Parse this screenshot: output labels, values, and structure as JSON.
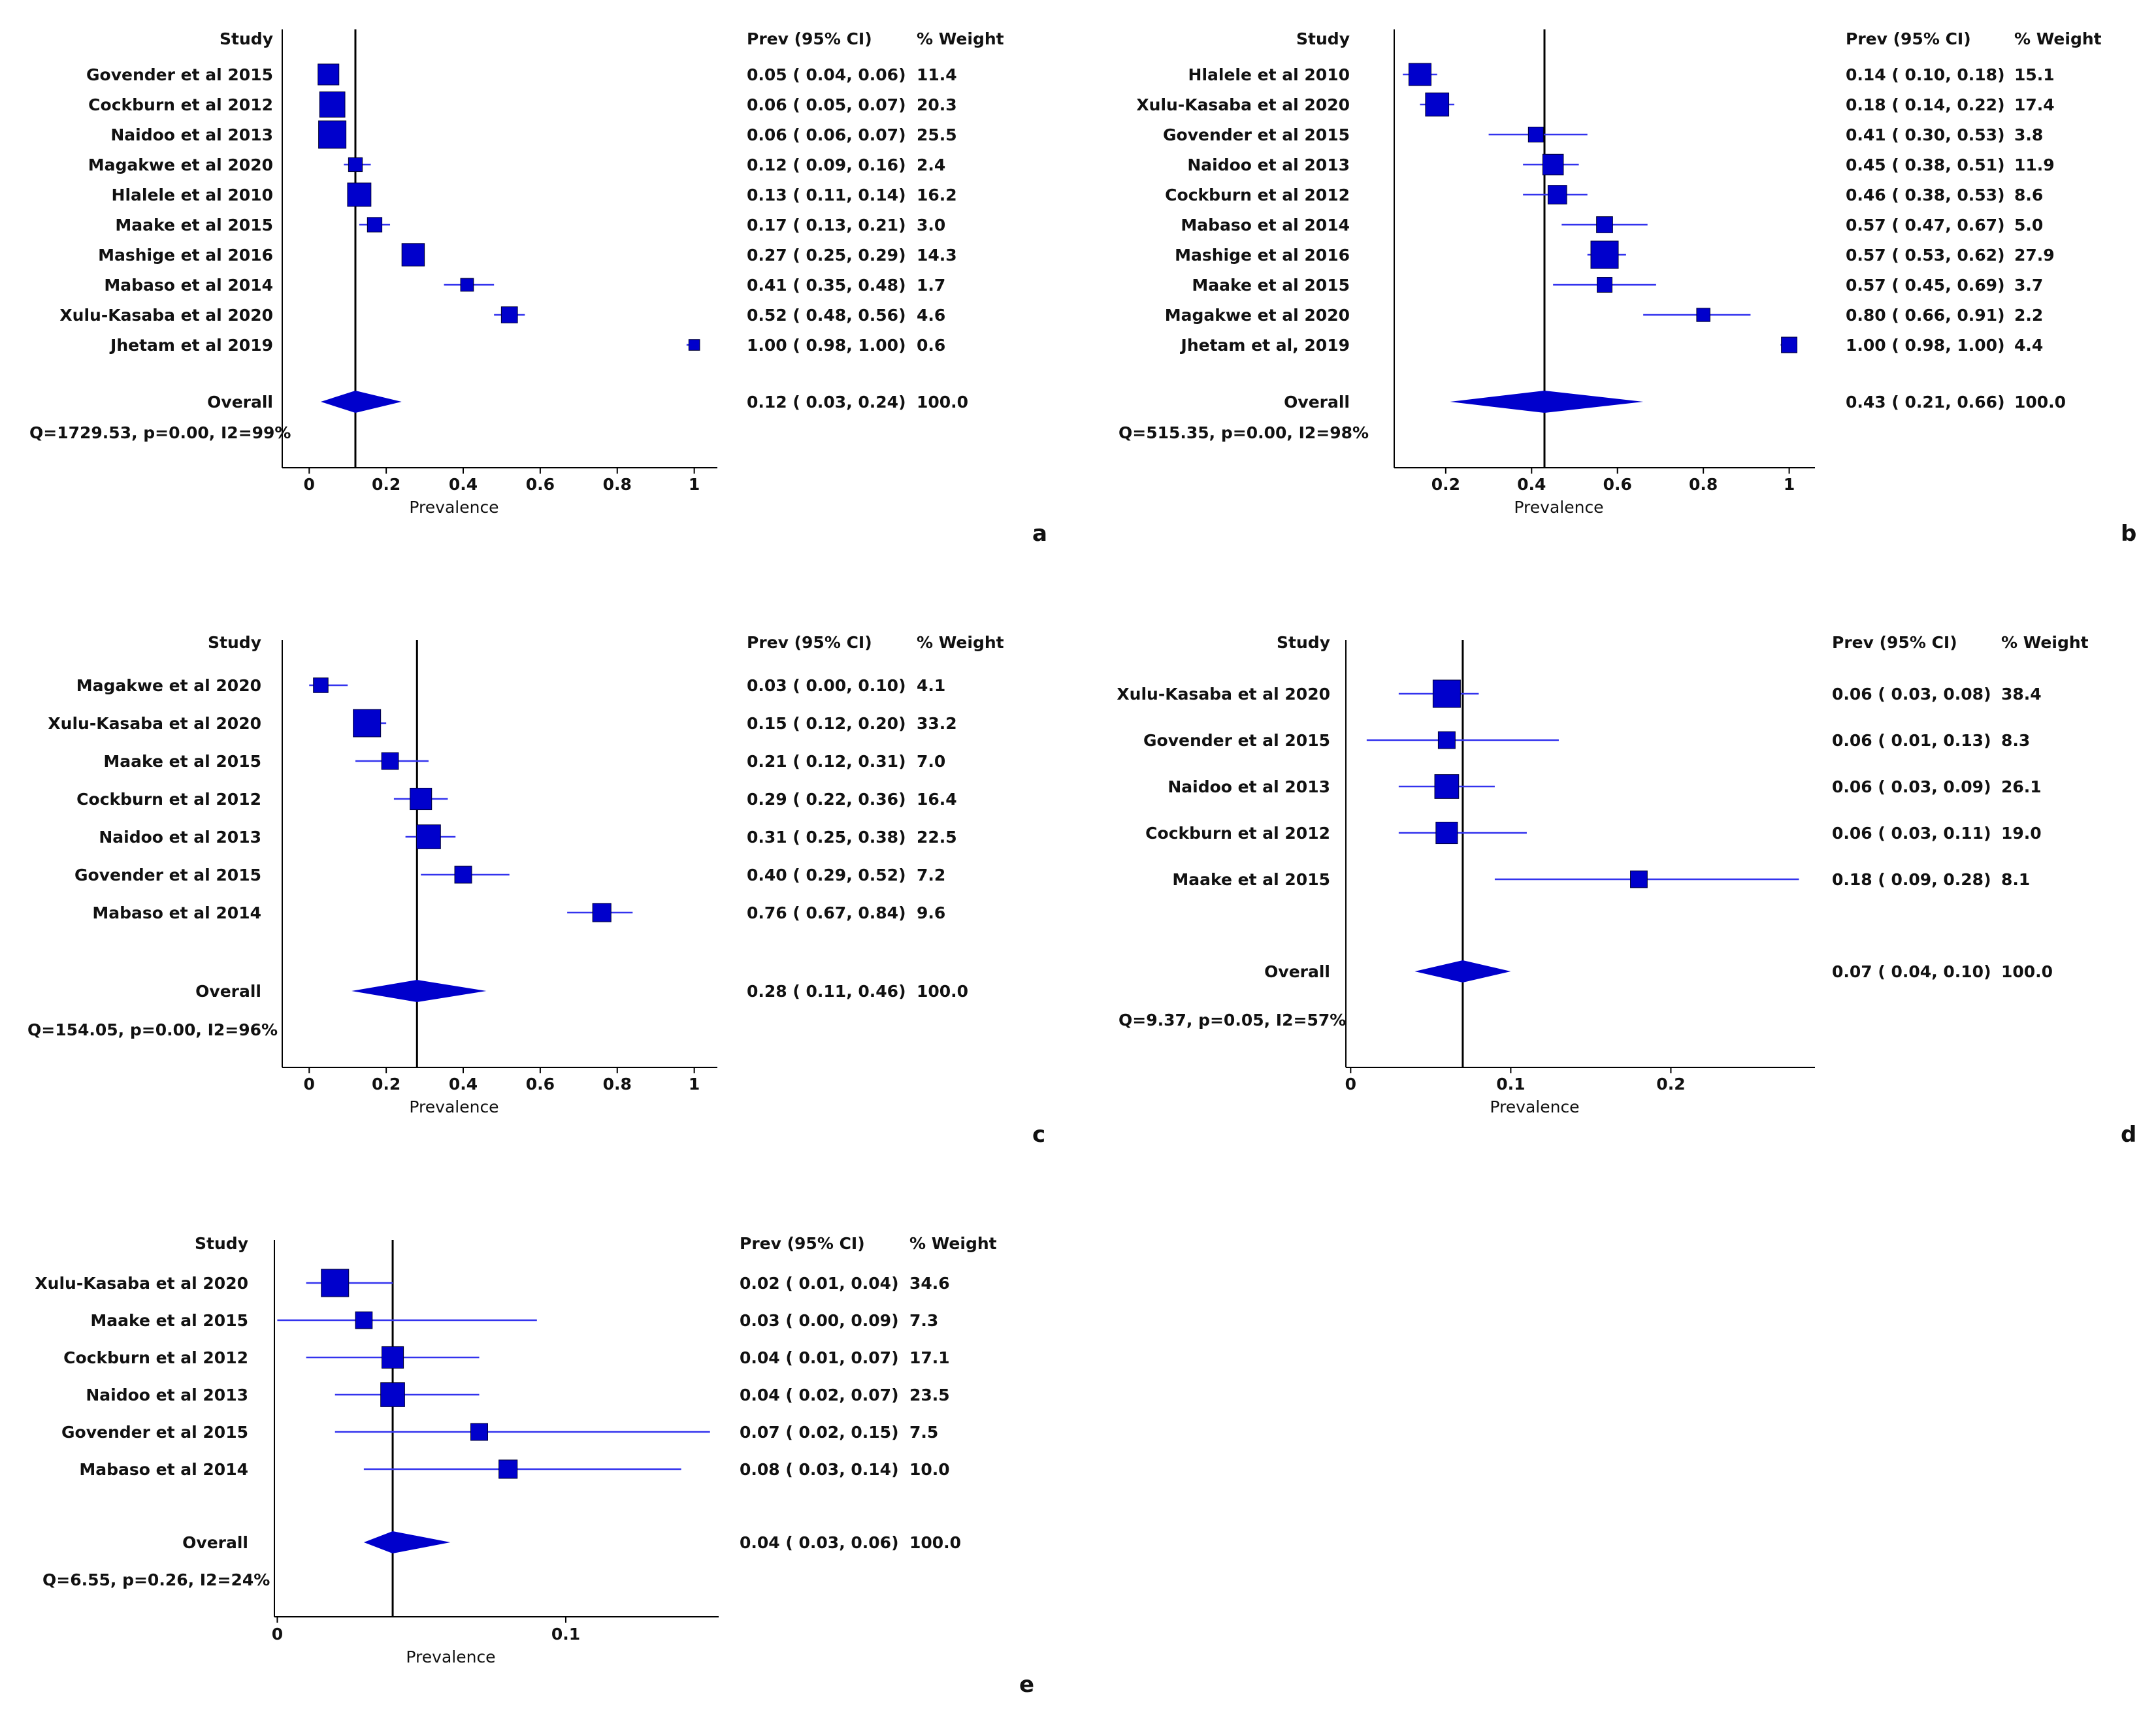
{
  "figure": {
    "headers": {
      "study": "Study",
      "prev": "Prev (95% CI)",
      "weight": "% Weight"
    },
    "xlabel": "Prevalence",
    "overall_label": "Overall",
    "colors": {
      "marker": "#0000cc",
      "ci": "#3333ee",
      "axis": "#000000"
    }
  },
  "chart_data": [
    {
      "type": "forest",
      "panel": "a",
      "studies": [
        {
          "name": "Govender et al 2015",
          "prev": 0.05,
          "lo": 0.04,
          "hi": 0.06,
          "weight": "11.4",
          "ci_text": "0.05 ( 0.04, 0.06)"
        },
        {
          "name": "Cockburn et al 2012",
          "prev": 0.06,
          "lo": 0.05,
          "hi": 0.07,
          "weight": "20.3",
          "ci_text": "0.06 ( 0.05, 0.07)"
        },
        {
          "name": "Naidoo et al 2013",
          "prev": 0.06,
          "lo": 0.06,
          "hi": 0.07,
          "weight": "25.5",
          "ci_text": "0.06 ( 0.06, 0.07)"
        },
        {
          "name": "Magakwe et al 2020",
          "prev": 0.12,
          "lo": 0.09,
          "hi": 0.16,
          "weight": "2.4",
          "ci_text": "0.12 ( 0.09, 0.16)"
        },
        {
          "name": "Hlalele et al 2010",
          "prev": 0.13,
          "lo": 0.11,
          "hi": 0.14,
          "weight": "16.2",
          "ci_text": "0.13 ( 0.11, 0.14)"
        },
        {
          "name": "Maake et al 2015",
          "prev": 0.17,
          "lo": 0.13,
          "hi": 0.21,
          "weight": "3.0",
          "ci_text": "0.17 ( 0.13, 0.21)"
        },
        {
          "name": "Mashige et al 2016",
          "prev": 0.27,
          "lo": 0.25,
          "hi": 0.29,
          "weight": "14.3",
          "ci_text": "0.27 ( 0.25, 0.29)"
        },
        {
          "name": "Mabaso et al 2014",
          "prev": 0.41,
          "lo": 0.35,
          "hi": 0.48,
          "weight": "1.7",
          "ci_text": "0.41 ( 0.35, 0.48)"
        },
        {
          "name": "Xulu-Kasaba et al 2020",
          "prev": 0.52,
          "lo": 0.48,
          "hi": 0.56,
          "weight": "4.6",
          "ci_text": "0.52 ( 0.48, 0.56)"
        },
        {
          "name": "Jhetam et al 2019",
          "prev": 1.0,
          "lo": 0.98,
          "hi": 1.0,
          "weight": "0.6",
          "ci_text": "1.00 ( 0.98, 1.00)"
        }
      ],
      "overall": {
        "prev": 0.12,
        "lo": 0.03,
        "hi": 0.24,
        "weight": "100.0",
        "ci_text": "0.12 ( 0.03, 0.24)"
      },
      "stats": "Q=1729.53, p=0.00, I2=99%",
      "xlim": [
        -0.07,
        1.06
      ],
      "xticks": [
        0,
        0.2,
        0.4,
        0.6,
        0.8,
        1
      ],
      "xtick_labels": [
        "0",
        "0.2",
        "0.4",
        "0.6",
        "0.8",
        "1"
      ]
    },
    {
      "type": "forest",
      "panel": "b",
      "studies": [
        {
          "name": "Hlalele et al 2010",
          "prev": 0.14,
          "lo": 0.1,
          "hi": 0.18,
          "weight": "15.1",
          "ci_text": "0.14 ( 0.10, 0.18)"
        },
        {
          "name": "Xulu-Kasaba et al 2020",
          "prev": 0.18,
          "lo": 0.14,
          "hi": 0.22,
          "weight": "17.4",
          "ci_text": "0.18 ( 0.14, 0.22)"
        },
        {
          "name": "Govender et al 2015",
          "prev": 0.41,
          "lo": 0.3,
          "hi": 0.53,
          "weight": "3.8",
          "ci_text": "0.41 ( 0.30, 0.53)"
        },
        {
          "name": "Naidoo et al 2013",
          "prev": 0.45,
          "lo": 0.38,
          "hi": 0.51,
          "weight": "11.9",
          "ci_text": "0.45 ( 0.38, 0.51)"
        },
        {
          "name": "Cockburn et al 2012",
          "prev": 0.46,
          "lo": 0.38,
          "hi": 0.53,
          "weight": "8.6",
          "ci_text": "0.46 ( 0.38, 0.53)"
        },
        {
          "name": "Mabaso et al 2014",
          "prev": 0.57,
          "lo": 0.47,
          "hi": 0.67,
          "weight": "5.0",
          "ci_text": "0.57 ( 0.47, 0.67)"
        },
        {
          "name": "Mashige et al 2016",
          "prev": 0.57,
          "lo": 0.53,
          "hi": 0.62,
          "weight": "27.9",
          "ci_text": "0.57 ( 0.53, 0.62)"
        },
        {
          "name": "Maake et al 2015",
          "prev": 0.57,
          "lo": 0.45,
          "hi": 0.69,
          "weight": "3.7",
          "ci_text": "0.57 ( 0.45, 0.69)"
        },
        {
          "name": "Magakwe et al 2020",
          "prev": 0.8,
          "lo": 0.66,
          "hi": 0.91,
          "weight": "2.2",
          "ci_text": "0.80 ( 0.66, 0.91)"
        },
        {
          "name": "Jhetam et al, 2019",
          "prev": 1.0,
          "lo": 0.98,
          "hi": 1.0,
          "weight": "4.4",
          "ci_text": "1.00 ( 0.98, 1.00)"
        }
      ],
      "overall": {
        "prev": 0.43,
        "lo": 0.21,
        "hi": 0.66,
        "weight": "100.0",
        "ci_text": "0.43 ( 0.21, 0.66)"
      },
      "stats": "Q=515.35, p=0.00, I2=98%",
      "xlim": [
        0.08,
        1.06
      ],
      "xticks": [
        0.2,
        0.4,
        0.6,
        0.8,
        1
      ],
      "xtick_labels": [
        "0.2",
        "0.4",
        "0.6",
        "0.8",
        "1"
      ]
    },
    {
      "type": "forest",
      "panel": "c",
      "studies": [
        {
          "name": "Magakwe et al 2020",
          "prev": 0.03,
          "lo": 0.0,
          "hi": 0.1,
          "weight": "4.1",
          "ci_text": "0.03 ( 0.00, 0.10)"
        },
        {
          "name": "Xulu-Kasaba et al 2020",
          "prev": 0.15,
          "lo": 0.12,
          "hi": 0.2,
          "weight": "33.2",
          "ci_text": "0.15 ( 0.12, 0.20)"
        },
        {
          "name": "Maake et al 2015",
          "prev": 0.21,
          "lo": 0.12,
          "hi": 0.31,
          "weight": "7.0",
          "ci_text": "0.21 ( 0.12, 0.31)"
        },
        {
          "name": "Cockburn et al 2012",
          "prev": 0.29,
          "lo": 0.22,
          "hi": 0.36,
          "weight": "16.4",
          "ci_text": "0.29 ( 0.22, 0.36)"
        },
        {
          "name": "Naidoo et al 2013",
          "prev": 0.31,
          "lo": 0.25,
          "hi": 0.38,
          "weight": "22.5",
          "ci_text": "0.31 ( 0.25, 0.38)"
        },
        {
          "name": "Govender et al 2015",
          "prev": 0.4,
          "lo": 0.29,
          "hi": 0.52,
          "weight": "7.2",
          "ci_text": "0.40 ( 0.29, 0.52)"
        },
        {
          "name": "Mabaso et al 2014",
          "prev": 0.76,
          "lo": 0.67,
          "hi": 0.84,
          "weight": "9.6",
          "ci_text": "0.76 ( 0.67, 0.84)"
        }
      ],
      "overall": {
        "prev": 0.28,
        "lo": 0.11,
        "hi": 0.46,
        "weight": "100.0",
        "ci_text": "0.28 ( 0.11, 0.46)"
      },
      "stats": "Q=154.05, p=0.00, I2=96%",
      "xlim": [
        -0.07,
        1.06
      ],
      "xticks": [
        0,
        0.2,
        0.4,
        0.6,
        0.8,
        1
      ],
      "xtick_labels": [
        "0",
        "0.2",
        "0.4",
        "0.6",
        "0.8",
        "1"
      ]
    },
    {
      "type": "forest",
      "panel": "d",
      "studies": [
        {
          "name": "Xulu-Kasaba et al 2020",
          "prev": 0.06,
          "lo": 0.03,
          "hi": 0.08,
          "weight": "38.4",
          "ci_text": "0.06 ( 0.03, 0.08)"
        },
        {
          "name": "Govender et al 2015",
          "prev": 0.06,
          "lo": 0.01,
          "hi": 0.13,
          "weight": "8.3",
          "ci_text": "0.06 ( 0.01, 0.13)"
        },
        {
          "name": "Naidoo et al 2013",
          "prev": 0.06,
          "lo": 0.03,
          "hi": 0.09,
          "weight": "26.1",
          "ci_text": "0.06 ( 0.03, 0.09)"
        },
        {
          "name": "Cockburn et al 2012",
          "prev": 0.06,
          "lo": 0.03,
          "hi": 0.11,
          "weight": "19.0",
          "ci_text": "0.06 ( 0.03, 0.11)"
        },
        {
          "name": "Maake et al 2015",
          "prev": 0.18,
          "lo": 0.09,
          "hi": 0.28,
          "weight": "8.1",
          "ci_text": "0.18 ( 0.09, 0.28)"
        }
      ],
      "overall": {
        "prev": 0.07,
        "lo": 0.04,
        "hi": 0.1,
        "weight": "100.0",
        "ci_text": "0.07 ( 0.04, 0.10)"
      },
      "stats": "Q=9.37, p=0.05, I2=57%",
      "xlim": [
        -0.003,
        0.29
      ],
      "xticks": [
        0,
        0.1,
        0.2
      ],
      "xtick_labels": [
        "0",
        "0.1",
        "0.2"
      ]
    },
    {
      "type": "forest",
      "panel": "e",
      "studies": [
        {
          "name": "Xulu-Kasaba et al 2020",
          "prev": 0.02,
          "lo": 0.01,
          "hi": 0.04,
          "weight": "34.6",
          "ci_text": "0.02 ( 0.01, 0.04)"
        },
        {
          "name": "Maake et al 2015",
          "prev": 0.03,
          "lo": 0.0,
          "hi": 0.09,
          "weight": "7.3",
          "ci_text": "0.03 ( 0.00, 0.09)"
        },
        {
          "name": "Cockburn et al 2012",
          "prev": 0.04,
          "lo": 0.01,
          "hi": 0.07,
          "weight": "17.1",
          "ci_text": "0.04 ( 0.01, 0.07)"
        },
        {
          "name": "Naidoo et al 2013",
          "prev": 0.04,
          "lo": 0.02,
          "hi": 0.07,
          "weight": "23.5",
          "ci_text": "0.04 ( 0.02, 0.07)"
        },
        {
          "name": "Govender et al 2015",
          "prev": 0.07,
          "lo": 0.02,
          "hi": 0.15,
          "weight": "7.5",
          "ci_text": "0.07 ( 0.02, 0.15)"
        },
        {
          "name": "Mabaso et al 2014",
          "prev": 0.08,
          "lo": 0.03,
          "hi": 0.14,
          "weight": "10.0",
          "ci_text": "0.08 ( 0.03, 0.14)"
        }
      ],
      "overall": {
        "prev": 0.04,
        "lo": 0.03,
        "hi": 0.06,
        "weight": "100.0",
        "ci_text": "0.04 ( 0.03, 0.06)"
      },
      "stats": "Q=6.55, p=0.26, I2=24%",
      "xlim": [
        -0.001,
        0.153
      ],
      "xticks": [
        0,
        0.1
      ],
      "xtick_labels": [
        "0",
        "0.1"
      ]
    }
  ]
}
